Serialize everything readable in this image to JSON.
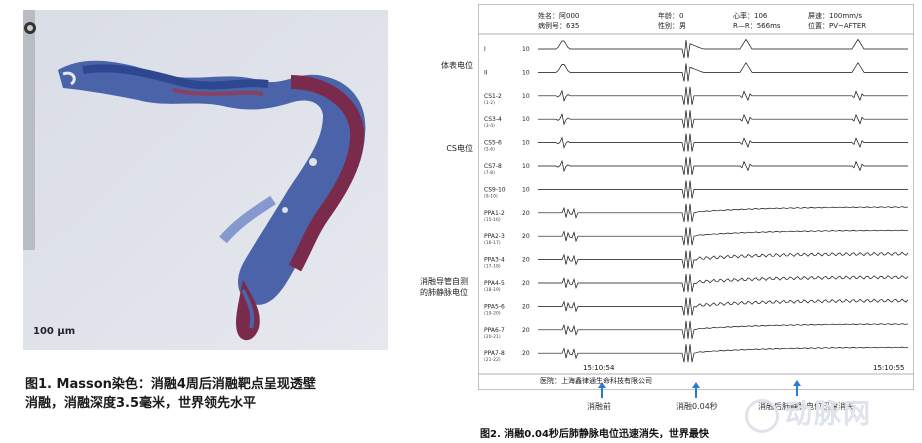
{
  "left": {
    "scale_bar": "100 µm",
    "caption": [
      "图1. Masson染色：消融4周后消融靶点呈现透壁",
      "消融，消融深度3.5毫米，世界领先水平"
    ]
  },
  "ecg": {
    "header": {
      "name": "姓名：阿000",
      "age": "年龄：0",
      "hr": "心率：106",
      "speed": "屏速：100mm/s",
      "case": "病例号：635",
      "sex": "性别：男",
      "rr": "R—R：566ms",
      "position": "位置：PV~AFTER"
    },
    "channels": [
      {
        "name": "I",
        "sub": "",
        "gain": "10"
      },
      {
        "name": "II",
        "sub": "",
        "gain": "10"
      },
      {
        "name": "CS1-2",
        "sub": "(1-2)",
        "gain": "10"
      },
      {
        "name": "CS3-4",
        "sub": "(3-4)",
        "gain": "10"
      },
      {
        "name": "CS5-6",
        "sub": "(5-6)",
        "gain": "10"
      },
      {
        "name": "CS7-8",
        "sub": "(7-8)",
        "gain": "10"
      },
      {
        "name": "CS9-10",
        "sub": "(9-10)",
        "gain": "10"
      },
      {
        "name": "PPA1-2",
        "sub": "(15-16)",
        "gain": "20"
      },
      {
        "name": "PPA2-3",
        "sub": "(16-17)",
        "gain": "20"
      },
      {
        "name": "PPA3-4",
        "sub": "(17-18)",
        "gain": "20"
      },
      {
        "name": "PPA4-5",
        "sub": "(18-19)",
        "gain": "20"
      },
      {
        "name": "PPA5-6",
        "sub": "(19-20)",
        "gain": "20"
      },
      {
        "name": "PPA6-7",
        "sub": "(20-21)",
        "gain": "20"
      },
      {
        "name": "PPA7-8",
        "sub": "(21-22)",
        "gain": "20"
      }
    ],
    "time_start": "15:10:54",
    "time_end": "15:10:55",
    "footer": "医院：上海鑫律通生命科技有限公司",
    "group_labels": {
      "surface": "体表电位",
      "cs": "CS电位",
      "pv": [
        "消融导管自测",
        "的肺静脉电位"
      ]
    },
    "arrows": [
      "消融前",
      "消融0.04秒",
      "消融后肺静脉电位迅速消失"
    ],
    "caption": "图2. 消融0.04秒后肺静脉电位迅速消失，世界最快"
  },
  "watermark": "动脉网"
}
